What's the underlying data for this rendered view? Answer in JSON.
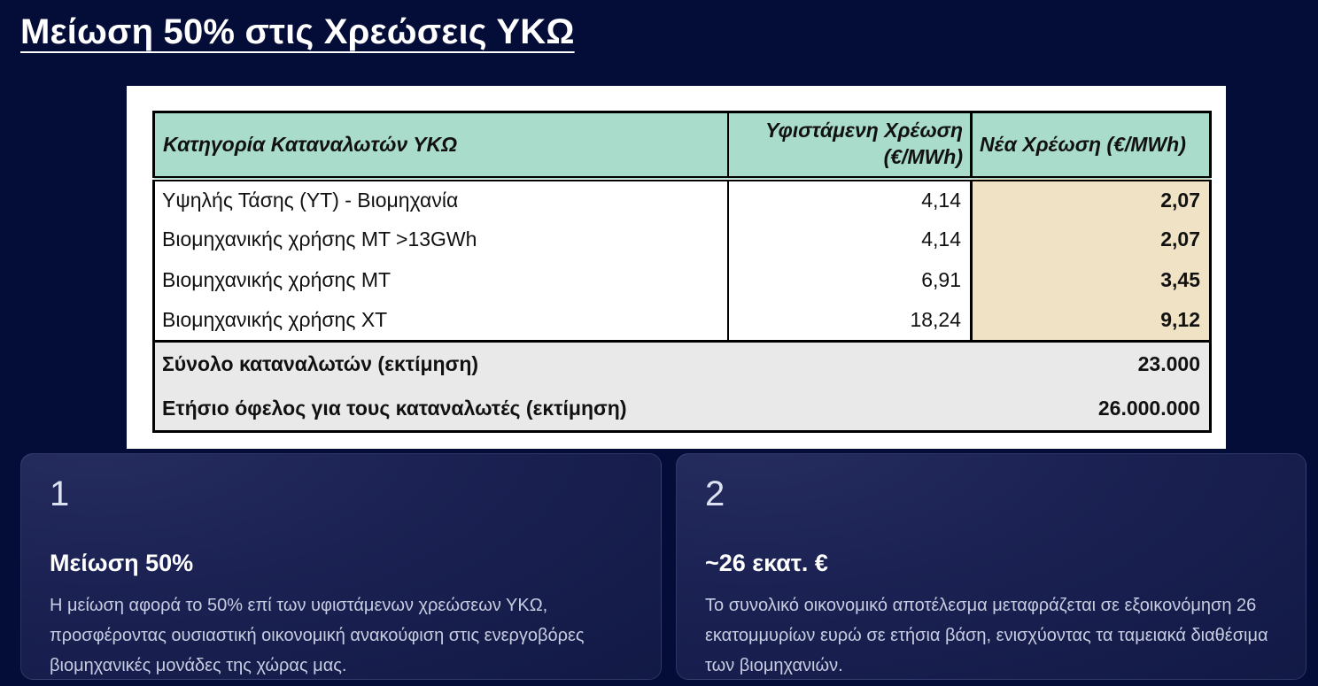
{
  "title": "Μείωση 50% στις Χρεώσεις ΥΚΩ",
  "colors": {
    "page_background": "#040d38",
    "card_background": "#1b2253",
    "table_header_bg": "#a9dcca",
    "new_charge_col_bg": "#f0e3c5",
    "summary_bg": "#e9e9e9"
  },
  "table": {
    "headers": {
      "category": "Κατηγορία Καταναλωτών ΥΚΩ",
      "existing": "Υφιστάμενη Χρέωση (€/MWh)",
      "new": "Νέα Χρέωση (€/MWh)"
    },
    "rows": [
      {
        "category": "Υψηλής Τάσης (ΥΤ) - Βιομηχανία",
        "existing": "4,14",
        "new": "2,07"
      },
      {
        "category": "Βιομηχανικής χρήσης ΜΤ >13GWh",
        "existing": "4,14",
        "new": "2,07"
      },
      {
        "category": "Βιομηχανικής χρήσης ΜΤ",
        "existing": "6,91",
        "new": "3,45"
      },
      {
        "category": "Βιομηχανικής χρήσης ΧΤ",
        "existing": "18,24",
        "new": "9,12"
      }
    ],
    "summary": [
      {
        "label": "Σύνολο καταναλωτών (εκτίμηση)",
        "value": "23.000"
      },
      {
        "label": "Ετήσιο όφελος για τους καταναλωτές (εκτίμηση)",
        "value": "26.000.000"
      }
    ]
  },
  "cards": [
    {
      "number": "1",
      "title": "Μείωση 50%",
      "body": "Η μείωση αφορά το 50% επί των υφιστάμενων χρεώσεων ΥΚΩ, προσφέροντας ουσιαστική οικονομική ανακούφιση στις ενεργοβόρες βιομηχανικές μονάδες της χώρας μας."
    },
    {
      "number": "2",
      "title": "~26 εκατ. €",
      "body": "Το συνολικό οικονομικό αποτέλεσμα μεταφράζεται σε εξοικονόμηση 26 εκατομμυρίων ευρώ σε ετήσια βάση, ενισχύοντας τα ταμειακά διαθέσιμα των βιομηχανιών."
    }
  ]
}
